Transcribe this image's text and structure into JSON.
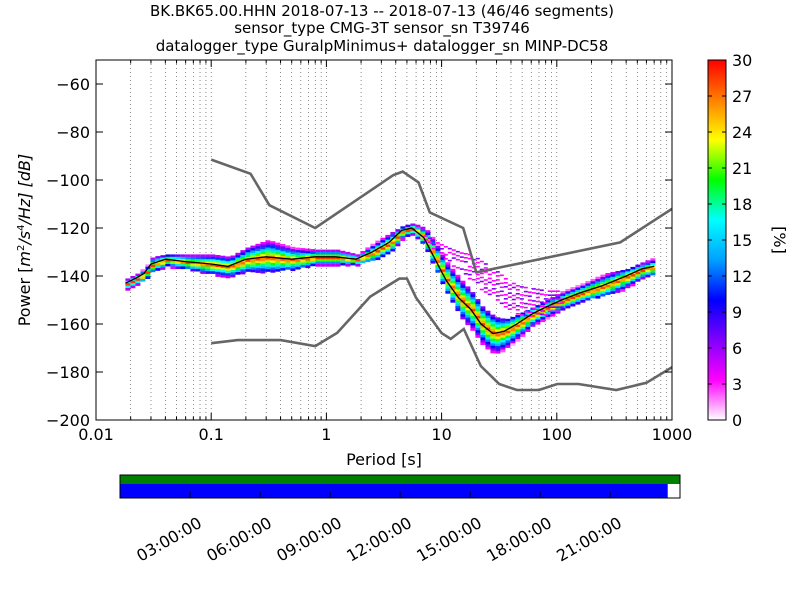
{
  "title": {
    "line1": "BK.BK65.00.HHN   2018-07-13 -- 2018-07-13  (46/46 segments)",
    "line2": "sensor_type CMG-3T sensor_sn T39746",
    "line3": "datalogger_type GuralpMinimus+ datalogger_sn MINP-DC58"
  },
  "chart_data": [
    {
      "type": "heatmap",
      "subtype": "probabilistic-power-spectral-density",
      "xlabel": "Period [s]",
      "ylabel": "Power [m²/s⁴/Hz] [dB]",
      "ylabel_parts": {
        "prefix": "Power [",
        "math": "m",
        "sup1": "2",
        "mid": "/s",
        "sup2": "4",
        "end": "/Hz] [dB]"
      },
      "xscale": "log",
      "xlim": [
        0.01,
        1000
      ],
      "ylim": [
        -200,
        -50
      ],
      "x_ticks": [
        0.01,
        0.1,
        1,
        10,
        100,
        1000
      ],
      "x_tick_labels": [
        "0.01",
        "0.1",
        "1",
        "10",
        "100",
        "1000"
      ],
      "y_ticks": [
        -200,
        -180,
        -160,
        -140,
        -120,
        -100,
        -80,
        -60
      ],
      "y_tick_labels": [
        "−200",
        "−180",
        "−160",
        "−140",
        "−120",
        "−100",
        "−80",
        "−60"
      ],
      "grid": "vertical dotted at minor log ticks",
      "colorbar": {
        "label": "[%]",
        "range": [
          0,
          30
        ],
        "ticks": [
          0,
          3,
          6,
          9,
          12,
          15,
          18,
          21,
          24,
          27,
          30
        ],
        "tick_labels": [
          "0",
          "3",
          "6",
          "9",
          "12",
          "15",
          "18",
          "21",
          "24",
          "27",
          "30"
        ],
        "colormap": [
          "#ffffff",
          "#ff00ff",
          "#8000ff",
          "#0000ff",
          "#00a0ff",
          "#00ffff",
          "#00ff00",
          "#ffff00",
          "#ff8000",
          "#ff0000"
        ]
      },
      "noise_models": {
        "color": "#666666",
        "new_high_noise_model": {
          "x": [
            0.1,
            0.22,
            0.32,
            0.8,
            3.8,
            4.6,
            6.3,
            7.9,
            15.4,
            20,
            354.8,
            1000
          ],
          "y": [
            -91.5,
            -97.4,
            -110.5,
            -120,
            -98,
            -96.5,
            -101,
            -113.5,
            -120,
            -138.5,
            -126,
            -112
          ]
        },
        "new_low_noise_model": {
          "x": [
            0.1,
            0.17,
            0.4,
            0.8,
            1.24,
            2.4,
            4.3,
            5,
            6,
            10,
            12,
            15.6,
            21.9,
            31.6,
            45,
            70,
            101,
            154,
            328,
            600,
            1000
          ],
          "y": [
            -168,
            -166.7,
            -166.7,
            -169.2,
            -163.7,
            -148.6,
            -141.1,
            -141.1,
            -149,
            -163.8,
            -166.2,
            -162.1,
            -177.5,
            -185,
            -187.5,
            -187.5,
            -185,
            -185,
            -187.5,
            -184.5,
            -178
          ]
        }
      },
      "median": {
        "color": "#000000",
        "x": [
          0.018,
          0.022,
          0.026,
          0.03,
          0.04,
          0.06,
          0.1,
          0.14,
          0.2,
          0.3,
          0.5,
          0.8,
          1.2,
          1.8,
          2.5,
          3.5,
          4.5,
          5.5,
          7,
          9,
          11,
          14,
          18,
          22,
          28,
          35,
          45,
          60,
          80,
          110,
          160,
          250,
          400,
          550,
          700
        ],
        "y": [
          -143,
          -141,
          -139,
          -135,
          -133,
          -134,
          -135,
          -136,
          -133,
          -132,
          -133,
          -132,
          -132,
          -133,
          -130,
          -126,
          -121,
          -120,
          -124,
          -134,
          -142,
          -149,
          -154,
          -160,
          -164,
          -163,
          -160,
          -156,
          -153,
          -150,
          -147,
          -144,
          -140,
          -137,
          -136
        ]
      },
      "density_band": {
        "x": [
          0.018,
          0.022,
          0.026,
          0.03,
          0.04,
          0.06,
          0.1,
          0.14,
          0.2,
          0.3,
          0.5,
          0.8,
          1.2,
          1.8,
          2.5,
          3.5,
          4.5,
          5.5,
          7,
          9,
          11,
          14,
          18,
          22,
          28,
          35,
          45,
          60,
          80,
          110,
          160,
          250,
          400,
          550,
          700
        ],
        "upper": [
          -141,
          -139,
          -136,
          -132,
          -131,
          -131,
          -131,
          -132,
          -128,
          -125,
          -128,
          -129,
          -129,
          -131,
          -126,
          -122,
          -119,
          -118,
          -120,
          -127,
          -135,
          -141,
          -147,
          -153,
          -157,
          -158,
          -156,
          -153,
          -150,
          -146,
          -143,
          -139,
          -137,
          -134,
          -132
        ],
        "lower": [
          -145,
          -143,
          -141,
          -138,
          -136,
          -137,
          -139,
          -140,
          -138,
          -138,
          -137,
          -135,
          -135,
          -135,
          -133,
          -130,
          -124,
          -122,
          -128,
          -139,
          -148,
          -156,
          -162,
          -168,
          -172,
          -170,
          -166,
          -161,
          -157,
          -153,
          -150,
          -148,
          -145,
          -140,
          -139
        ]
      },
      "outlier_band": {
        "x": [
          7,
          9,
          11,
          14,
          18,
          22,
          28,
          35,
          45,
          60,
          80,
          110
        ],
        "upper": [
          -123,
          -126,
          -128,
          -130,
          -131,
          -134,
          -137,
          -141,
          -144,
          -145,
          -146,
          -146
        ],
        "lower": [
          -126,
          -130,
          -134,
          -138,
          -142,
          -146,
          -150,
          -154,
          -156,
          -157,
          -156,
          -154
        ]
      }
    },
    {
      "type": "timeline",
      "ticks": [
        "03:00:00",
        "06:00:00",
        "09:00:00",
        "12:00:00",
        "15:00:00",
        "18:00:00",
        "21:00:00"
      ],
      "green_coverage": 1.0,
      "blue_coverage": 0.978,
      "colors": {
        "green": "#008000",
        "blue": "#0000ff"
      }
    }
  ]
}
